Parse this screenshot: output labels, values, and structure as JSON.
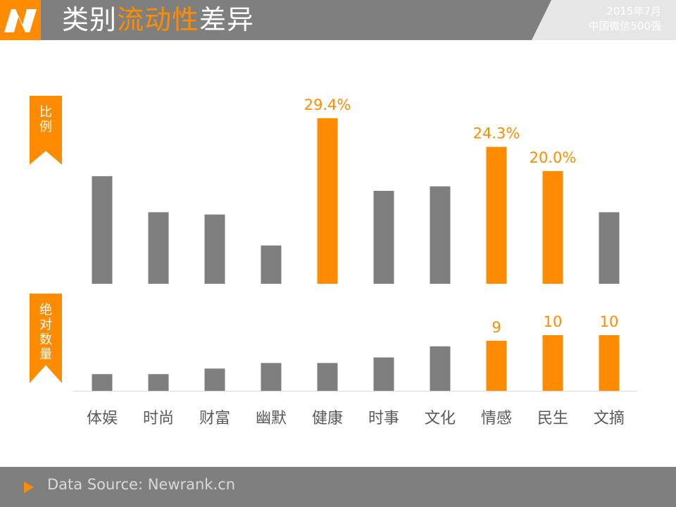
{
  "header": {
    "title_part1": "类别",
    "title_highlight": "流动性",
    "title_part2": "差异",
    "date_line1": "2015年7月",
    "date_line2": "中国微信500强"
  },
  "side_labels": {
    "ratio": "比例",
    "absolute": "绝对数量"
  },
  "footer": {
    "source": "Data Source: Newrank.cn"
  },
  "colors": {
    "gray": "#7f7f7f",
    "orange": "#ff8c00"
  },
  "chart_data": [
    {
      "type": "bar",
      "categories": [
        "体娱",
        "时尚",
        "财富",
        "幽默",
        "健康",
        "时事",
        "文化",
        "情感",
        "民生",
        "文摘"
      ],
      "values": [
        19.1,
        12.7,
        12.3,
        6.8,
        29.4,
        16.5,
        17.3,
        24.3,
        20.0,
        12.7
      ],
      "highlight": [
        false,
        false,
        false,
        false,
        true,
        false,
        false,
        true,
        true,
        false
      ],
      "data_labels": [
        "",
        "",
        "",
        "",
        "29.4%",
        "",
        "",
        "24.3%",
        "20.0%",
        ""
      ],
      "ylim": [
        0,
        30
      ],
      "grid": false
    },
    {
      "type": "bar",
      "categories": [
        "体娱",
        "时尚",
        "财富",
        "幽默",
        "健康",
        "时事",
        "文化",
        "情感",
        "民生",
        "文摘"
      ],
      "values": [
        3,
        3,
        4,
        5,
        5,
        6,
        8,
        9,
        10,
        10
      ],
      "highlight": [
        false,
        false,
        false,
        false,
        false,
        false,
        false,
        true,
        true,
        true
      ],
      "data_labels": [
        "",
        "",
        "",
        "",
        "",
        "",
        "",
        "9",
        "10",
        "10"
      ],
      "ylim": [
        0,
        10
      ],
      "grid": false
    }
  ]
}
